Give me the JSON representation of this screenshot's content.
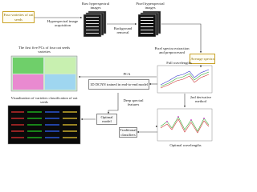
{
  "title_raw": "Raw hyperspectral images",
  "title_pixel": "Pixel hyperspectral images",
  "acquisition": "Hyperspectral image acquisition",
  "seeds": "Four varieties of oat seeds",
  "background_removal": "Background removal",
  "spectra_extraction": "Pixel spectra extraction and preprocessed",
  "average_spectra": "Average spectra",
  "full_wavelengths": "Full wavelengths",
  "pca": "PCA",
  "first_pcs": "The first five PCs of four oat seeds varieties",
  "dcnn": "1D DCNN trained in end-to-end model",
  "derivative": "2nd derivative method",
  "deep_features": "Deep spectral features",
  "optimal_model": "Optimal model",
  "traditional": "Traditional classifiers",
  "visualization": "Visualization of varieties classification of oat seeds",
  "optimal_wavelengths": "Optimal wavelengths"
}
